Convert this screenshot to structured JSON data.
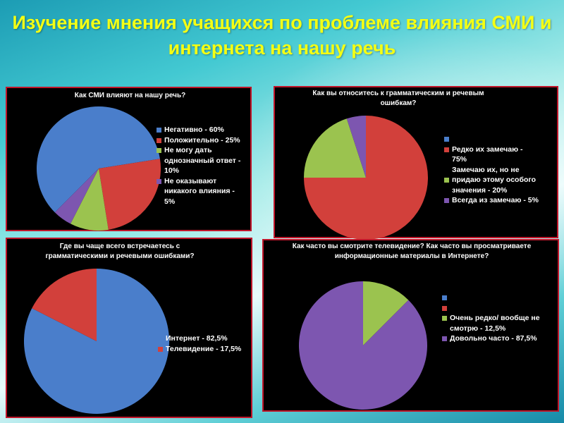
{
  "slide_title": "Изучение мнения учащихся по проблеме влияния СМИ и интернета на нашу речь",
  "colors": {
    "blue": "#4a7ecb",
    "red": "#d2403b",
    "green": "#9bc34f",
    "purple": "#7d56b0",
    "title": "#f4ff14",
    "border": "#c0162a"
  },
  "chart_data": [
    {
      "type": "pie",
      "title": "Как СМИ влияют на нашу речь?",
      "categories": [
        "Негативно - 60%",
        "Положительно - 25%",
        "Не могу дать однозначный ответ - 10%",
        "Не оказывают никакого влияния - 5%"
      ],
      "values": [
        60,
        25,
        10,
        5
      ],
      "legend": [
        {
          "label": "Негативно - 60%",
          "color": "blue"
        },
        {
          "label": "Положительно - 25%",
          "color": "red"
        },
        {
          "label": "Не могу дать\nоднозначный ответ -\n10%",
          "color": "green"
        },
        {
          "label": "Не оказывают\nникакого влияния -\n5%",
          "color": "purple"
        }
      ]
    },
    {
      "type": "pie",
      "title": "Как вы относитесь к грамматическим и речевым ошибкам?",
      "categories": [
        "",
        "Редко их замечаю - 75%",
        "Замечаю их, но не придаю этому особого значения - 20%",
        "Всегда из замечаю - 5%"
      ],
      "values": [
        0,
        75,
        20,
        5
      ],
      "legend": [
        {
          "label": "",
          "color": "blue"
        },
        {
          "label": "Редко их замечаю -\n75%\nЗамечаю их, но не",
          "color": "red"
        },
        {
          "label": "придаю этому особого\nзначения - 20%",
          "color": "green"
        },
        {
          "label": "Всегда из замечаю - 5%",
          "color": "purple"
        }
      ]
    },
    {
      "type": "pie",
      "title": "Где вы чаще всего встречаетесь с грамматическими и речевыми ошибками?",
      "categories": [
        "Интернет - 82,5%",
        "Телевидение - 17,5%"
      ],
      "values": [
        82.5,
        17.5
      ],
      "legend": [
        {
          "label": "Интернет - 82,5%",
          "color": "blue"
        },
        {
          "label": "Телевидение - 17,5%",
          "color": "red"
        }
      ]
    },
    {
      "type": "pie",
      "title": "Как часто вы смотрите телевидение?                    Как часто вы просматриваете информационные материалы в Интернете?",
      "categories": [
        "",
        "",
        "Очень редко/ вообще не смотрю - 12,5%",
        "Довольно часто - 87,5%"
      ],
      "values": [
        0,
        0,
        12.5,
        87.5
      ],
      "legend": [
        {
          "label": "",
          "color": "blue"
        },
        {
          "label": "",
          "color": "red"
        },
        {
          "label": "Очень редко/ вообще не\nсмотрю - 12,5%",
          "color": "green"
        },
        {
          "label": "Довольно часто - 87,5%",
          "color": "purple"
        }
      ]
    }
  ]
}
